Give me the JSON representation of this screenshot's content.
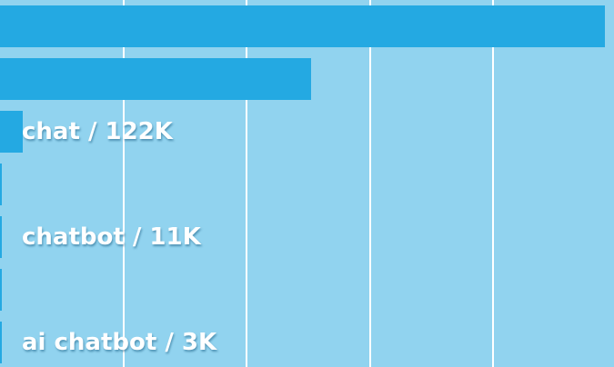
{
  "chart_data": {
    "type": "bar",
    "orientation": "horizontal",
    "categories": [
      "",
      "",
      "chat",
      "",
      "chatbot",
      "",
      "ai chatbot"
    ],
    "values": [
      3290,
      1690,
      122,
      11,
      11,
      11,
      3
    ],
    "labels": [
      "",
      "",
      "chat / 122K",
      "",
      "chatbot / 11K",
      "",
      "ai chatbot / 3K"
    ],
    "unit": "K",
    "xlim": [
      0,
      3340
    ],
    "grid": true,
    "colors": {
      "background": "#91d3ef",
      "bar": "#24a9e2",
      "gridline": "#ffffff",
      "label": "#ffffff"
    }
  }
}
